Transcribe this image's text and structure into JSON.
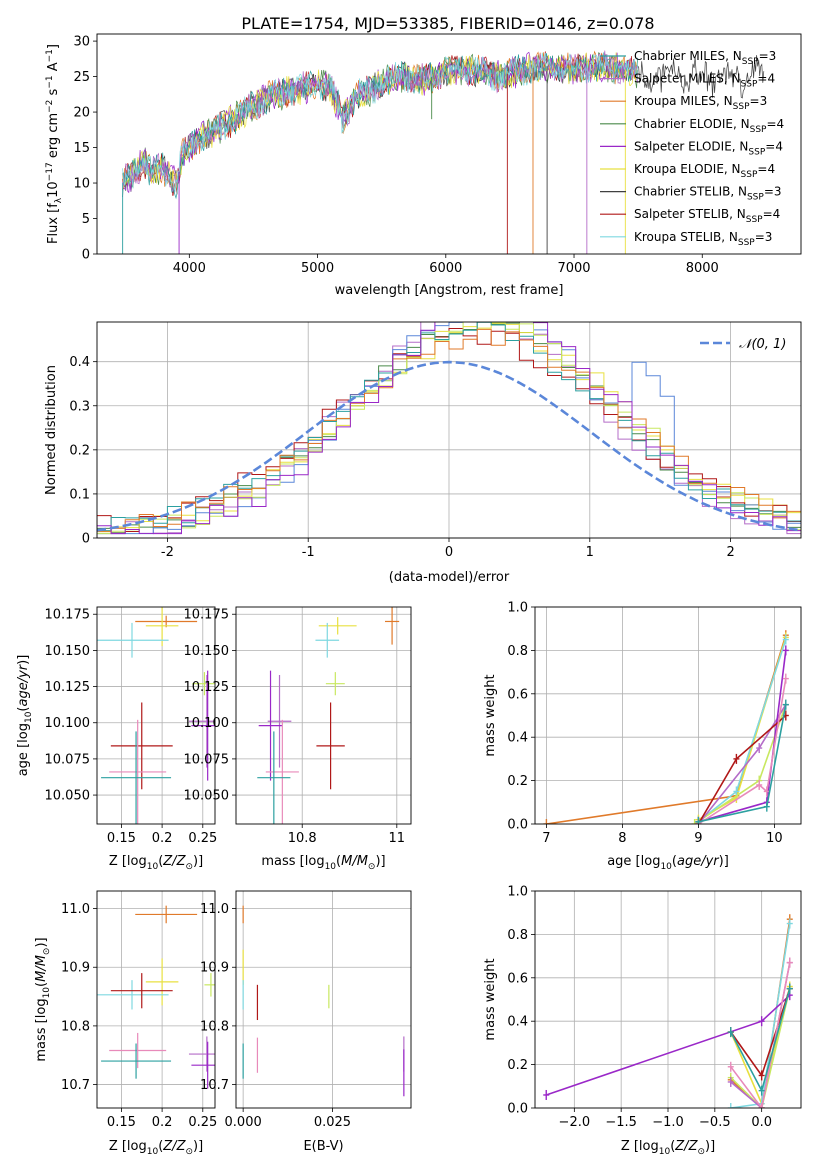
{
  "figure_title": "PLATE=1754, MJD=53385, FIBERID=0146, z=0.078",
  "colors": {
    "grid": "#b0b0b0",
    "gauss": "#5b87d9",
    "axis": "#000000",
    "models": [
      "#2ca0a0",
      "#b46cc8",
      "#e07a2a",
      "#4a8a4a",
      "#9a28c8",
      "#e8e040",
      "#404040",
      "#b01818",
      "#7fd8e0"
    ],
    "extra": [
      "#5b87d9",
      "#e88aba",
      "#c8e860",
      "#d27a2a"
    ]
  },
  "chart_data": [
    {
      "id": "spectrum",
      "type": "line",
      "title": "PLATE=1754, MJD=53385, FIBERID=0146, z=0.078",
      "xlabel": "wavelength [Angstrom, rest frame]",
      "ylabel": "Flux [f",
      "xlim": [
        3280,
        8770
      ],
      "ylim": [
        0,
        31
      ],
      "xticks": [
        4000,
        5000,
        6000,
        7000,
        8000
      ],
      "yticks": [
        0,
        5,
        10,
        15,
        20,
        25,
        30
      ],
      "grid": false,
      "legend_position": "top-right",
      "series": [
        {
          "name": "Chabrier MILES, N",
          "n": 3
        },
        {
          "name": "Salpeter MILES, N",
          "n": 4
        },
        {
          "name": "Kroupa MILES, N",
          "n": 3
        },
        {
          "name": "Chabrier ELODIE, N",
          "n": 4
        },
        {
          "name": "Salpeter ELODIE, N",
          "n": 4
        },
        {
          "name": "Kroupa ELODIE, N",
          "n": 4
        },
        {
          "name": "Chabrier STELIB, N",
          "n": 3
        },
        {
          "name": "Salpeter STELIB, N",
          "n": 4
        },
        {
          "name": "Kroupa STELIB, N",
          "n": 3
        }
      ],
      "envelope": {
        "x": [
          3480,
          3550,
          3600,
          3650,
          3700,
          3750,
          3800,
          3850,
          3900,
          3950,
          4000,
          4100,
          4200,
          4300,
          4400,
          4500,
          4600,
          4700,
          4800,
          4900,
          5000,
          5100,
          5200,
          5300,
          5400,
          5500,
          5600,
          5700,
          5800,
          5900,
          6000,
          6200,
          6400,
          6600,
          6800,
          7000,
          7200,
          7400,
          7500
        ],
        "y": [
          10,
          11,
          12,
          13,
          11.5,
          12,
          12,
          11,
          10,
          14,
          15,
          16.5,
          17.5,
          18.5,
          19.5,
          21,
          22,
          22.5,
          23,
          23.5,
          24,
          23.5,
          19,
          22.5,
          23,
          24,
          25,
          25,
          24.5,
          25,
          26,
          26,
          25,
          26,
          26.5,
          26,
          26.5,
          26,
          25.5
        ]
      },
      "drops": [
        {
          "x": 3480,
          "y": 0
        },
        {
          "x": 3920,
          "y": 0
        },
        {
          "x": 5190,
          "y": 17
        },
        {
          "x": 5890,
          "y": 19
        },
        {
          "x": 6480,
          "y": 0
        },
        {
          "x": 6680,
          "y": 0
        },
        {
          "x": 6790,
          "y": 0
        },
        {
          "x": 7100,
          "y": 0
        },
        {
          "x": 7400,
          "y": 0
        }
      ]
    },
    {
      "id": "residuals",
      "type": "line",
      "xlabel": "(data-model)/error",
      "ylabel": "Normed distribution",
      "xlim": [
        -2.5,
        2.5
      ],
      "ylim": [
        0,
        0.49
      ],
      "xticks": [
        -2,
        -1,
        0,
        1,
        2
      ],
      "yticks": [
        0.0,
        0.1,
        0.2,
        0.3,
        0.4
      ],
      "grid": true,
      "legend_position": "top-right",
      "gauss_label": "𝒩(0, 1)"
    },
    {
      "id": "age-vs-Z",
      "type": "scatter",
      "xlabel": "Z [log",
      "ylabel": "age  [log",
      "xlim": [
        0.12,
        0.265
      ],
      "ylim": [
        10.03,
        10.18
      ],
      "xticks": [
        0.15,
        0.2,
        0.25
      ],
      "yticks": [
        10.05,
        10.075,
        10.1,
        10.125,
        10.15,
        10.175
      ],
      "grid": true,
      "points": [
        {
          "x": 0.205,
          "y": 10.17,
          "xerr": 0.038,
          "yerr": 0.004
        },
        {
          "x": 0.2,
          "y": 10.167,
          "xerr": 0.02,
          "yerr": 0.014
        },
        {
          "x": 0.163,
          "y": 10.157,
          "xerr": 0.045,
          "yerr": 0.012
        },
        {
          "x": 0.252,
          "y": 10.127,
          "xerr": 0.015,
          "yerr": 0.008
        },
        {
          "x": 0.255,
          "y": 10.101,
          "xerr": 0.022,
          "yerr": 0.032
        },
        {
          "x": 0.256,
          "y": 10.098,
          "xerr": 0.02,
          "yerr": 0.038
        },
        {
          "x": 0.175,
          "y": 10.084,
          "xerr": 0.038,
          "yerr": 0.03
        },
        {
          "x": 0.17,
          "y": 10.066,
          "xerr": 0.035,
          "yerr": 0.036
        },
        {
          "x": 0.168,
          "y": 10.062,
          "xerr": 0.043,
          "yerr": 0.032
        }
      ]
    },
    {
      "id": "age-vs-mass",
      "type": "scatter",
      "xlabel": "mass [log",
      "ylabel": "",
      "xlim": [
        10.66,
        11.03
      ],
      "ylim": [
        10.03,
        10.18
      ],
      "xticks": [
        10.8,
        11.0
      ],
      "yticks": [
        10.05,
        10.075,
        10.1,
        10.125,
        10.15,
        10.175
      ],
      "grid": true,
      "points": [
        {
          "x": 10.99,
          "y": 10.17,
          "xerr": 0.015,
          "yerr": 0.016
        },
        {
          "x": 10.875,
          "y": 10.167,
          "xerr": 0.04,
          "yerr": 0.006
        },
        {
          "x": 10.853,
          "y": 10.157,
          "xerr": 0.025,
          "yerr": 0.012
        },
        {
          "x": 10.87,
          "y": 10.127,
          "xerr": 0.02,
          "yerr": 0.008
        },
        {
          "x": 10.752,
          "y": 10.101,
          "xerr": 0.025,
          "yerr": 0.032
        },
        {
          "x": 10.733,
          "y": 10.098,
          "xerr": 0.025,
          "yerr": 0.038
        },
        {
          "x": 10.86,
          "y": 10.084,
          "xerr": 0.03,
          "yerr": 0.03
        },
        {
          "x": 10.758,
          "y": 10.066,
          "xerr": 0.035,
          "yerr": 0.036
        },
        {
          "x": 10.74,
          "y": 10.062,
          "xerr": 0.035,
          "yerr": 0.032
        }
      ]
    },
    {
      "id": "weight-vs-age",
      "type": "line",
      "xlabel": "age  [log",
      "ylabel": "mass weight",
      "xlim": [
        6.85,
        10.35
      ],
      "ylim": [
        0,
        1
      ],
      "xticks": [
        7,
        8,
        9,
        10
      ],
      "yticks": [
        0.0,
        0.2,
        0.4,
        0.6,
        0.8,
        1.0
      ],
      "grid": true,
      "series": [
        {
          "x": [
            7.0,
            9.5,
            10.15
          ],
          "y": [
            0.0,
            0.13,
            0.87
          ]
        },
        {
          "x": [
            9.0,
            9.5,
            10.15
          ],
          "y": [
            0.02,
            0.12,
            0.86
          ]
        },
        {
          "x": [
            9.0,
            9.5,
            10.15
          ],
          "y": [
            0.01,
            0.15,
            0.85
          ]
        },
        {
          "x": [
            8.95,
            9.8,
            10.15
          ],
          "y": [
            0.0,
            0.2,
            0.55
          ]
        },
        {
          "x": [
            9.0,
            9.8,
            10.15
          ],
          "y": [
            0.0,
            0.35,
            0.55
          ]
        },
        {
          "x": [
            9.0,
            9.9,
            10.15
          ],
          "y": [
            0.01,
            0.1,
            0.8
          ]
        },
        {
          "x": [
            9.0,
            9.5,
            10.15
          ],
          "y": [
            0.0,
            0.3,
            0.5
          ]
        },
        {
          "x": [
            9.0,
            9.8,
            9.9,
            10.15
          ],
          "y": [
            0.0,
            0.18,
            0.15,
            0.67
          ]
        },
        {
          "x": [
            9.0,
            9.9,
            10.15
          ],
          "y": [
            0.01,
            0.08,
            0.55
          ]
        }
      ]
    },
    {
      "id": "mass-vs-Z",
      "type": "scatter",
      "xlabel": "Z [log",
      "ylabel": "mass [log",
      "xlim": [
        0.12,
        0.265
      ],
      "ylim": [
        10.66,
        11.03
      ],
      "xticks": [
        0.15,
        0.2,
        0.25
      ],
      "yticks": [
        10.7,
        10.8,
        10.9,
        11.0
      ],
      "grid": true,
      "points": [
        {
          "x": 0.205,
          "y": 10.99,
          "xerr": 0.038,
          "yerr": 0.015
        },
        {
          "x": 0.2,
          "y": 10.875,
          "xerr": 0.02,
          "yerr": 0.04
        },
        {
          "x": 0.163,
          "y": 10.853,
          "xerr": 0.045,
          "yerr": 0.025
        },
        {
          "x": 0.26,
          "y": 10.87,
          "xerr": 0.008,
          "yerr": 0.02
        },
        {
          "x": 0.255,
          "y": 10.752,
          "xerr": 0.022,
          "yerr": 0.03
        },
        {
          "x": 0.256,
          "y": 10.733,
          "xerr": 0.02,
          "yerr": 0.04
        },
        {
          "x": 0.175,
          "y": 10.86,
          "xerr": 0.038,
          "yerr": 0.03
        },
        {
          "x": 0.17,
          "y": 10.758,
          "xerr": 0.035,
          "yerr": 0.03
        },
        {
          "x": 0.168,
          "y": 10.74,
          "xerr": 0.043,
          "yerr": 0.03
        }
      ]
    },
    {
      "id": "mass-vs-EBV",
      "type": "scatter",
      "xlabel": "E(B-V)",
      "ylabel": "",
      "xlim": [
        -0.002,
        0.047
      ],
      "ylim": [
        10.66,
        11.03
      ],
      "xticks": [
        0.0,
        0.025
      ],
      "xticklabels": [
        "0.000",
        "0.025"
      ],
      "yticks": [
        10.7,
        10.8,
        10.9,
        11.0
      ],
      "grid": true,
      "points": [
        {
          "x": 0.0,
          "y": 10.99,
          "yerr": 0.015
        },
        {
          "x": 0.0,
          "y": 10.9,
          "yerr": 0.03
        },
        {
          "x": 0.0,
          "y": 10.853,
          "yerr": 0.025
        },
        {
          "x": 0.024,
          "y": 10.85,
          "yerr": 0.02
        },
        {
          "x": 0.045,
          "y": 10.752,
          "yerr": 0.03
        },
        {
          "x": 0.045,
          "y": 10.72,
          "yerr": 0.04
        },
        {
          "x": 0.004,
          "y": 10.84,
          "yerr": 0.03
        },
        {
          "x": 0.004,
          "y": 10.75,
          "yerr": 0.03
        },
        {
          "x": 0.0,
          "y": 10.74,
          "yerr": 0.03
        }
      ]
    },
    {
      "id": "weight-vs-Z",
      "type": "line",
      "xlabel": "Z [log",
      "ylabel": "mass weight",
      "xlim": [
        -2.42,
        0.42
      ],
      "ylim": [
        0,
        1
      ],
      "xticks": [
        -2.0,
        -1.5,
        -1.0,
        -0.5,
        0.0
      ],
      "xticklabels": [
        "−2.0",
        "−1.5",
        "−1.0",
        "−0.5",
        "0.0"
      ],
      "yticks": [
        0.0,
        0.2,
        0.4,
        0.6,
        0.8,
        1.0
      ],
      "grid": true,
      "series": [
        {
          "x": [
            -0.33,
            0.0,
            0.3
          ],
          "y": [
            0.13,
            0.0,
            0.87
          ]
        },
        {
          "x": [
            -0.33,
            0.0,
            0.3
          ],
          "y": [
            0.35,
            0.02,
            0.56
          ]
        },
        {
          "x": [
            -0.33,
            0.0,
            0.3
          ],
          "y": [
            0.0,
            0.02,
            0.85
          ]
        },
        {
          "x": [
            -0.33,
            0.0,
            0.3
          ],
          "y": [
            0.14,
            0.0,
            0.55
          ]
        },
        {
          "x": [
            -0.33,
            0.0,
            0.3
          ],
          "y": [
            0.12,
            0.0,
            0.67
          ]
        },
        {
          "x": [
            -2.3,
            0.0,
            0.3
          ],
          "y": [
            0.06,
            0.4,
            0.52
          ]
        },
        {
          "x": [
            -0.33,
            0.0,
            0.3
          ],
          "y": [
            0.35,
            0.15,
            0.55
          ]
        },
        {
          "x": [
            -0.33,
            0.0,
            0.3
          ],
          "y": [
            0.19,
            0.0,
            0.67
          ]
        },
        {
          "x": [
            -0.33,
            0.0,
            0.3
          ],
          "y": [
            0.35,
            0.08,
            0.55
          ]
        }
      ]
    }
  ]
}
